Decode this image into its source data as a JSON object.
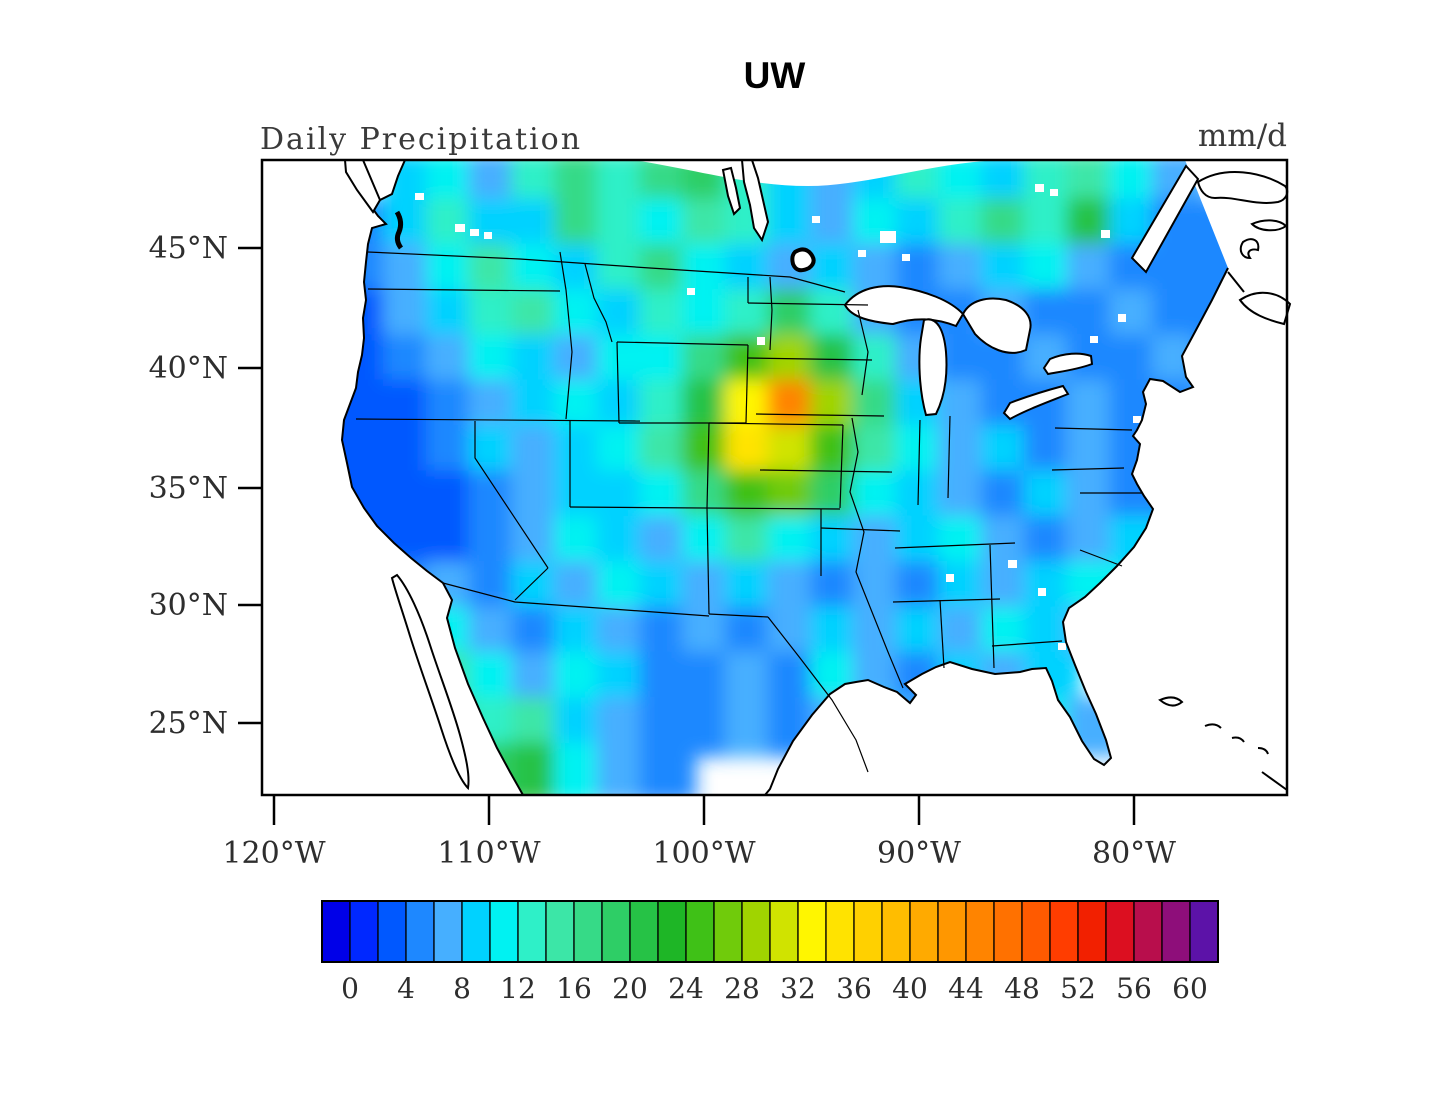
{
  "chart_data": {
    "type": "heatmap",
    "title": "UW",
    "left_label": "Daily Precipitation",
    "right_label": "mm/d",
    "units": "mm/d",
    "x_axis": {
      "tick_labels": [
        "120°W",
        "110°W",
        "100°W",
        "90°W",
        "80°W"
      ]
    },
    "y_axis": {
      "tick_labels": [
        "45°N",
        "40°N",
        "35°N",
        "30°N",
        "25°N"
      ]
    },
    "colorbar": {
      "min": 0,
      "max": 60,
      "value_step_per_cell": 2,
      "tick_labels": [
        "0",
        "4",
        "8",
        "12",
        "16",
        "20",
        "24",
        "28",
        "32",
        "36",
        "40",
        "44",
        "48",
        "52",
        "56",
        "60"
      ],
      "palette": [
        "#0000E8",
        "#0028FF",
        "#0058FF",
        "#1E88FF",
        "#46AFFF",
        "#00D2FF",
        "#00F2F2",
        "#2EF0C8",
        "#3CE6A7",
        "#36DA87",
        "#2ECE66",
        "#26C246",
        "#1EB626",
        "#3FC117",
        "#70CB0B",
        "#A0D400",
        "#D0E300",
        "#FFF600",
        "#FFE300",
        "#FFD000",
        "#FFBD00",
        "#FFAA00",
        "#FF9700",
        "#FF8400",
        "#FF7100",
        "#FF5A00",
        "#FF3D00",
        "#F22000",
        "#DC0F20",
        "#B80E4C",
        "#8E0E7A",
        "#5C12A8"
      ]
    },
    "grid": {
      "cols": 24,
      "rows": 14,
      "values": [
        [
          null,
          null,
          null,
          8,
          10,
          6,
          12,
          16,
          12,
          16,
          18,
          12,
          8,
          6,
          8,
          12,
          10,
          8,
          12,
          14,
          10,
          6,
          null,
          null
        ],
        [
          null,
          null,
          4,
          8,
          12,
          8,
          8,
          16,
          12,
          10,
          14,
          12,
          8,
          6,
          10,
          8,
          12,
          16,
          12,
          20,
          8,
          4,
          4,
          null
        ],
        [
          3,
          3,
          4,
          6,
          10,
          14,
          10,
          8,
          12,
          16,
          10,
          8,
          6,
          8,
          6,
          4,
          6,
          8,
          10,
          6,
          4,
          4,
          4,
          4
        ],
        [
          2,
          2,
          3,
          6,
          8,
          12,
          14,
          10,
          8,
          12,
          10,
          12,
          18,
          12,
          6,
          4,
          4,
          6,
          4,
          4,
          6,
          4,
          4,
          4
        ],
        [
          3,
          2,
          3,
          4,
          6,
          10,
          8,
          6,
          10,
          10,
          16,
          24,
          28,
          20,
          12,
          6,
          4,
          4,
          6,
          4,
          4,
          6,
          4,
          4
        ],
        [
          2,
          2,
          2,
          3,
          4,
          6,
          8,
          10,
          8,
          12,
          20,
          32,
          44,
          28,
          16,
          8,
          6,
          4,
          4,
          6,
          4,
          4,
          6,
          4
        ],
        [
          2,
          2,
          2,
          3,
          4,
          8,
          6,
          8,
          10,
          14,
          24,
          34,
          30,
          24,
          14,
          10,
          6,
          8,
          4,
          6,
          4,
          4,
          4,
          null
        ],
        [
          2,
          2,
          2,
          2,
          3,
          4,
          6,
          8,
          8,
          10,
          16,
          24,
          26,
          18,
          10,
          8,
          6,
          4,
          8,
          6,
          4,
          4,
          null,
          null
        ],
        [
          2,
          2,
          2,
          2,
          3,
          4,
          6,
          10,
          8,
          6,
          10,
          14,
          10,
          8,
          6,
          8,
          10,
          6,
          4,
          6,
          8,
          null,
          null,
          null
        ],
        [
          null,
          2,
          3,
          4,
          6,
          4,
          8,
          6,
          10,
          8,
          6,
          8,
          6,
          4,
          6,
          4,
          8,
          6,
          8,
          10,
          null,
          null,
          null,
          null
        ],
        [
          null,
          null,
          3,
          6,
          10,
          6,
          4,
          8,
          6,
          4,
          6,
          4,
          6,
          8,
          6,
          8,
          6,
          10,
          8,
          6,
          null,
          null,
          null,
          null
        ],
        [
          null,
          null,
          null,
          8,
          14,
          10,
          6,
          10,
          8,
          4,
          4,
          6,
          4,
          10,
          6,
          4,
          8,
          6,
          8,
          null,
          null,
          null,
          null,
          null
        ],
        [
          null,
          null,
          null,
          null,
          16,
          12,
          14,
          8,
          6,
          4,
          4,
          6,
          4,
          6,
          8,
          6,
          6,
          8,
          10,
          6,
          null,
          null,
          null,
          null
        ],
        [
          null,
          null,
          null,
          null,
          null,
          18,
          20,
          10,
          6,
          4,
          null,
          null,
          null,
          null,
          null,
          null,
          null,
          null,
          null,
          null,
          null,
          null,
          null,
          null
        ]
      ]
    }
  }
}
